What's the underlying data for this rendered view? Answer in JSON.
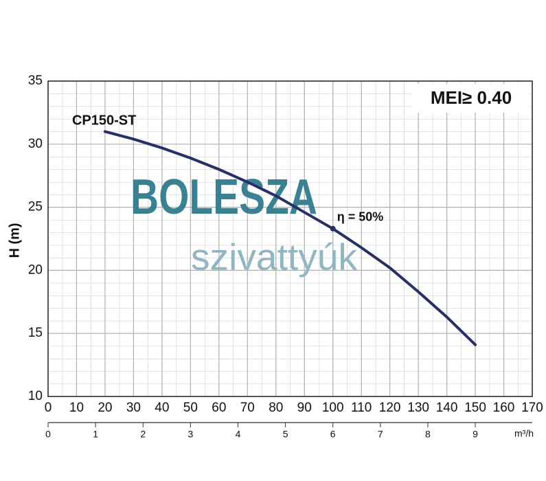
{
  "chart_data": {
    "type": "line",
    "series": [
      {
        "name": "CP150-ST",
        "color": "#25306b",
        "x": [
          20,
          30,
          40,
          50,
          60,
          70,
          80,
          90,
          100,
          110,
          120,
          130,
          140,
          150
        ],
        "values": [
          31.0,
          30.4,
          29.7,
          28.9,
          28.0,
          27.0,
          25.9,
          24.6,
          23.3,
          21.8,
          20.2,
          18.3,
          16.3,
          14.1
        ]
      }
    ],
    "xlim": [
      0,
      170
    ],
    "xticks": [
      0,
      10,
      20,
      30,
      40,
      50,
      60,
      70,
      80,
      90,
      100,
      110,
      120,
      130,
      140,
      150,
      160,
      170
    ],
    "ylim": [
      10,
      35
    ],
    "yticks": [
      10,
      15,
      20,
      25,
      30,
      35
    ],
    "ylabel": "H (m)",
    "x2lim": [
      0,
      10.2
    ],
    "x2ticks": [
      0,
      1,
      2,
      3,
      4,
      5,
      6,
      7,
      8,
      9
    ],
    "x2label": "m³/h",
    "grid": true,
    "annotations": [
      {
        "text": "η = 50%",
        "x": 100,
        "y": 23.3
      }
    ],
    "badge": "MEI≥ 0.40",
    "watermark": [
      "BOLESZA",
      "szivattyúk"
    ]
  }
}
